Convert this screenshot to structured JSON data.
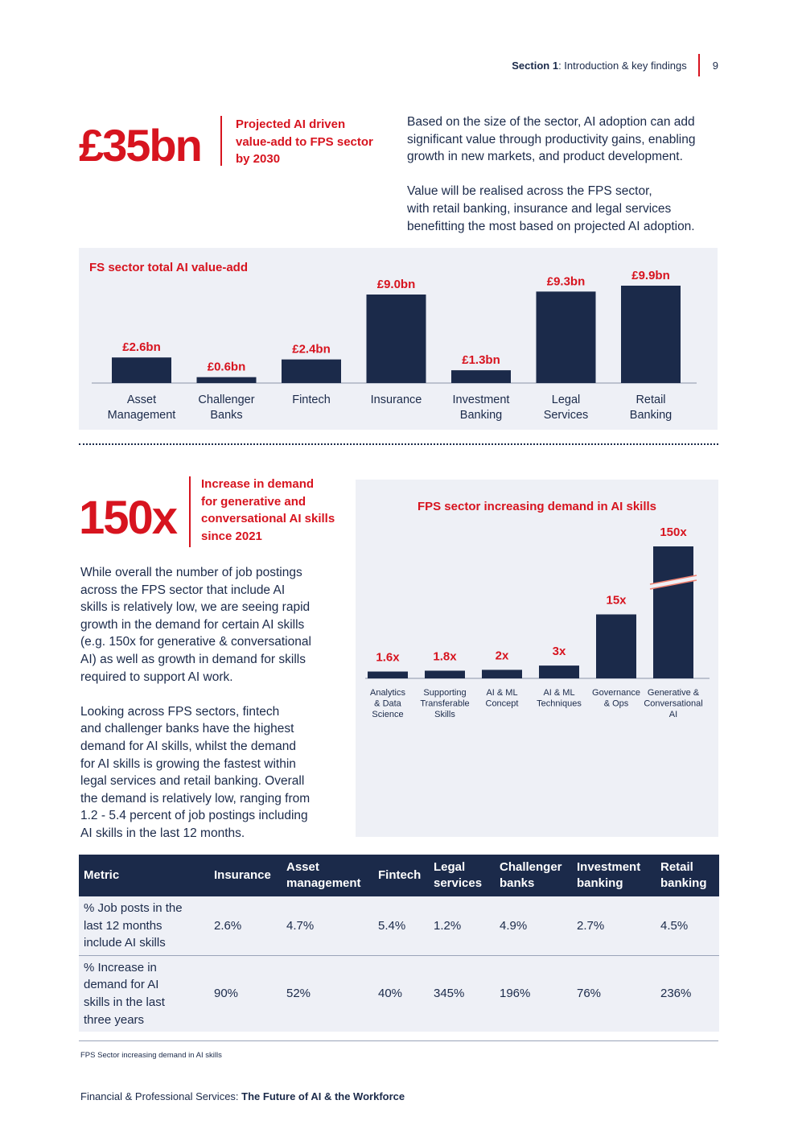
{
  "header": {
    "section_label": "Section 1",
    "section_title": ": Introduction & key findings",
    "page_number": "9"
  },
  "stat1": {
    "value": "£35bn",
    "desc_lines": [
      "Projected AI driven",
      "value-add to FPS sector",
      "by 2030"
    ]
  },
  "intro": {
    "p1_lines": [
      "Based on the size of the sector, AI adoption can add",
      "significant value through productivity gains, enabling",
      "growth in new markets, and product development."
    ],
    "p2_lines": [
      "Value will be realised across the FPS sector,",
      "with retail banking, insurance and legal services",
      "benefitting the most based on projected AI adoption."
    ]
  },
  "chart_data": [
    {
      "type": "bar",
      "title": "FS sector total AI value-add",
      "categories": [
        [
          "Asset",
          "Management"
        ],
        [
          "Challenger",
          "Banks"
        ],
        [
          "Fintech"
        ],
        [
          "Insurance"
        ],
        [
          "Investment",
          "Banking"
        ],
        [
          "Legal",
          "Services"
        ],
        [
          "Retail",
          "Banking"
        ]
      ],
      "values": [
        2.6,
        0.6,
        2.4,
        9.0,
        1.3,
        9.3,
        9.9
      ],
      "labels": [
        "£2.6bn",
        "£0.6bn",
        "£2.4bn",
        "£9.0bn",
        "£1.3bn",
        "£9.3bn",
        "£9.9bn"
      ],
      "ylim": [
        0,
        9.9
      ],
      "bar_color": "#1b2a4a",
      "label_color": "#d7141f"
    },
    {
      "type": "bar",
      "title": "FPS sector increasing demand in AI skills",
      "categories": [
        [
          "Analytics",
          "& Data",
          "Science"
        ],
        [
          "Supporting",
          "Transferable",
          "Skills"
        ],
        [
          "AI & ML",
          "Concept"
        ],
        [
          "AI & ML",
          "Techniques"
        ],
        [
          "Governance",
          "& Ops"
        ],
        [
          "Generative &",
          "Conversational",
          "AI"
        ]
      ],
      "values": [
        1.6,
        1.8,
        2,
        3,
        15,
        150
      ],
      "labels": [
        "1.6x",
        "1.8x",
        "2x",
        "3x",
        "15x",
        "150x"
      ],
      "axis_break_on": "Generative & Conversational AI",
      "bar_color": "#1b2a4a",
      "label_color": "#d7141f"
    }
  ],
  "stat2": {
    "value": "150x",
    "desc_lines": [
      "Increase in demand",
      "for generative and",
      "conversational AI skills",
      "since 2021"
    ]
  },
  "body": {
    "p1_lines": [
      "While overall the number of job postings",
      "across the FPS sector that include AI",
      "skills is relatively low, we are seeing rapid",
      "growth in the demand for certain AI skills",
      "(e.g. 150x for generative & conversational",
      "AI) as well as growth in demand for skills",
      "required to support AI work."
    ],
    "p2_lines": [
      "Looking across FPS sectors, fintech",
      "and challenger banks have the highest",
      "demand for AI skills, whilst the demand",
      "for AI skills is growing the fastest within",
      "legal services and retail banking. Overall",
      "the demand is relatively low, ranging from",
      "1.2 - 5.4 percent of job postings including",
      "AI skills in the last 12 months."
    ]
  },
  "table": {
    "headers": [
      [
        "Metric"
      ],
      [
        "Insurance"
      ],
      [
        "Asset",
        "management"
      ],
      [
        "Fintech"
      ],
      [
        "Legal",
        "services"
      ],
      [
        "Challenger",
        "banks"
      ],
      [
        "Investment",
        "banking"
      ],
      [
        "Retail",
        "banking"
      ]
    ],
    "rows": [
      {
        "metric_lines": [
          "% Job posts in the",
          "last 12 months",
          "include AI skills"
        ],
        "values": [
          "2.6%",
          "4.7%",
          "5.4%",
          "1.2%",
          "4.9%",
          "2.7%",
          "4.5%"
        ]
      },
      {
        "metric_lines": [
          "% Increase in",
          "demand for AI",
          "skills in the last",
          "three years"
        ],
        "values": [
          "90%",
          "52%",
          "40%",
          "345%",
          "196%",
          "76%",
          "236%"
        ]
      }
    ]
  },
  "caption": "FPS Sector increasing demand in AI skills",
  "footer": {
    "prefix": "Financial & Professional Services: ",
    "title": "The Future of AI & the Workforce"
  }
}
